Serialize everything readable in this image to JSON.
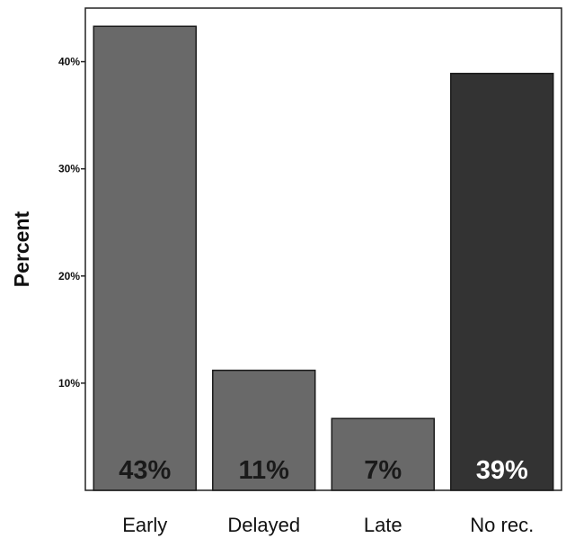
{
  "chart_data": {
    "type": "bar",
    "categories": [
      "Early",
      "Delayed",
      "Late",
      "No rec."
    ],
    "values": [
      43.3,
      11.2,
      6.7,
      38.9
    ],
    "data_labels": [
      "43%",
      "11%",
      "7%",
      "39%"
    ],
    "ylabel": "Percent",
    "xlabel": "",
    "ylim": [
      0,
      45
    ],
    "yticks": [
      10,
      20,
      30,
      40
    ],
    "ytick_labels": [
      "10%",
      "20%",
      "30%",
      "40%"
    ],
    "bar_colors": [
      "#696969",
      "#696969",
      "#696969",
      "#333333"
    ],
    "data_label_colors": [
      "#1a1a1a",
      "#1a1a1a",
      "#1a1a1a",
      "#ffffff"
    ],
    "grid": false
  }
}
